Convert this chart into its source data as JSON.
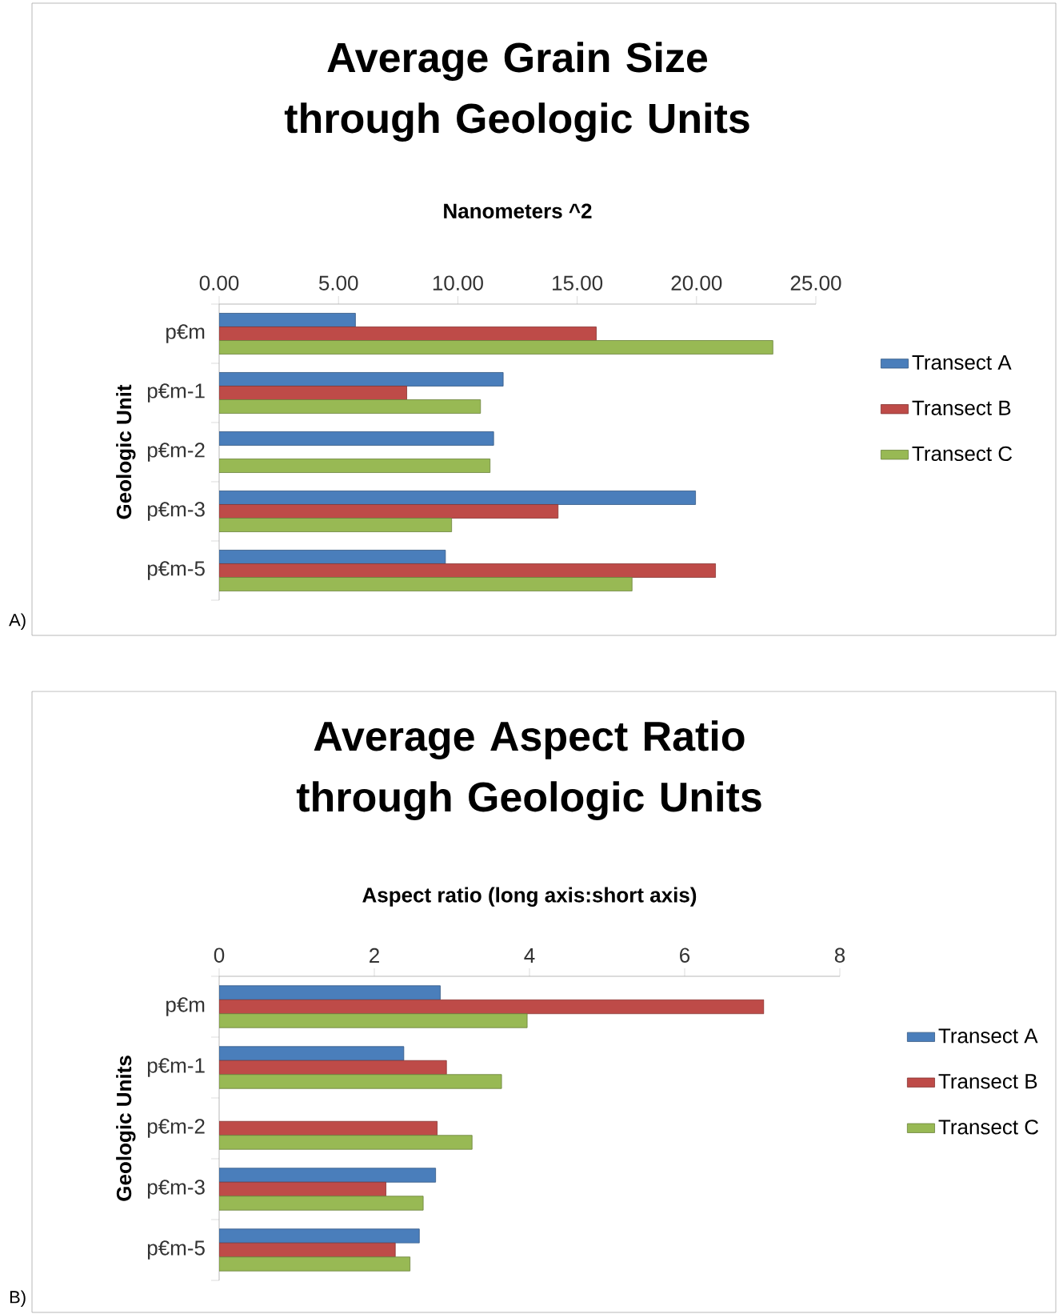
{
  "chart_data": [
    {
      "type": "bar",
      "orientation": "horizontal",
      "title": "Average Grain Size through Geologic Units",
      "xlabel": "Nanometers ^2",
      "ylabel": "Geologic Unit",
      "categories": [
        "p€m",
        "p€m-1",
        "p€m-2",
        "p€m-3",
        "p€m-5"
      ],
      "series": [
        {
          "name": "Transect A",
          "color": "#4a7ebb",
          "values": [
            5.71,
            11.9,
            11.5,
            19.96,
            9.48
          ]
        },
        {
          "name": "Transect B",
          "color": "#be4b48",
          "values": [
            15.8,
            7.86,
            null,
            14.2,
            20.8
          ]
        },
        {
          "name": "Transect C",
          "color": "#98b954",
          "values": [
            23.2,
            10.95,
            11.35,
            9.74,
            17.3
          ]
        }
      ],
      "xlim": [
        0,
        25
      ],
      "xticks": [
        {
          "value": 0,
          "label": "0.00"
        },
        {
          "value": 5,
          "label": "5.00"
        },
        {
          "value": 10,
          "label": "10.00"
        },
        {
          "value": 15,
          "label": "15.00"
        },
        {
          "value": 20,
          "label": "20.00"
        },
        {
          "value": 25,
          "label": "25.00"
        }
      ],
      "legend": "right",
      "annotations": [
        "A)"
      ]
    },
    {
      "type": "bar",
      "orientation": "horizontal",
      "title": "Average Aspect Ratio through Geologic Units",
      "xlabel": "Aspect ratio (long axis:short axis)",
      "ylabel": "Geologic Units",
      "categories": [
        "p€m",
        "p€m-1",
        "p€m-2",
        "p€m-3",
        "p€m-5"
      ],
      "series": [
        {
          "name": "Transect A",
          "color": "#4a7ebb",
          "values": [
            2.85,
            2.38,
            null,
            2.79,
            2.58
          ]
        },
        {
          "name": "Transect B",
          "color": "#be4b48",
          "values": [
            7.02,
            2.93,
            2.81,
            2.15,
            2.27
          ]
        },
        {
          "name": "Transect C",
          "color": "#98b954",
          "values": [
            3.97,
            3.64,
            3.26,
            2.63,
            2.46
          ]
        }
      ],
      "xlim": [
        0,
        8
      ],
      "xticks": [
        0,
        2,
        4,
        6,
        8
      ],
      "legend": "right",
      "annotations": [
        "B)"
      ]
    }
  ]
}
